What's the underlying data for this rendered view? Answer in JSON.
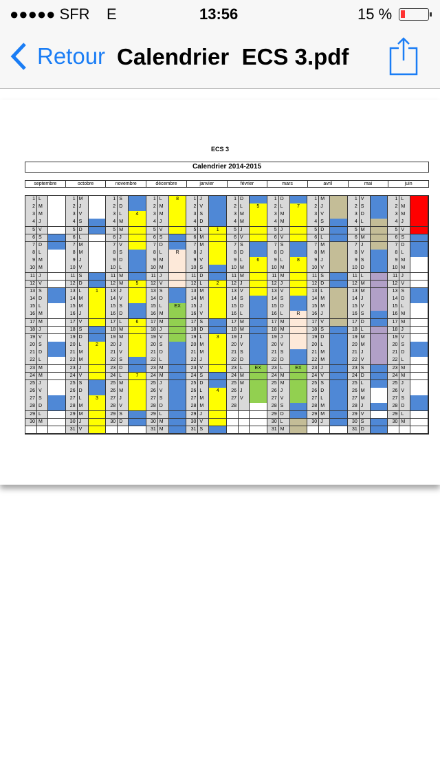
{
  "status_bar": {
    "carrier": "●●●●● SFR",
    "network": "E",
    "time": "13:56",
    "battery": "15 %",
    "battery_level": 0.15
  },
  "nav": {
    "back_label": "Retour",
    "title": "Calendrier  ECS 3.pdf",
    "accent": "#1a7df5"
  },
  "document": {
    "heading": "ECS 3",
    "calendar_title": "Calendrier 2014-2015",
    "colors": {
      "w": "#ffffff",
      "b": "#4f88d6",
      "y": "#ffff00",
      "p": "#fde9d9",
      "g": "#92d050",
      "t": "#c4bd97",
      "v": "#b1a0c7",
      "r": "#ff0000"
    },
    "months": [
      {
        "name": "septembre",
        "letters": "LMMJVSDLMMJVSDLMMJVSDLMMJVSDLM",
        "fills": "wwwwwbbwwwwwbbwwwwwbbwwwwwbbww",
        "labels": {}
      },
      {
        "name": "octobre",
        "letters": "MJVSDLMMJVSDLMMJVSDLMMJVSDLMMJV",
        "fills": "wwwbbwwwwwbbyyyyybbyyyyybbyyyyy",
        "labels": {
          "13": "1",
          "20": "2",
          "27": "3"
        }
      },
      {
        "name": "novembre",
        "letters": "SDLMMJVSDLMMJVSDLMMJVSDLMMJVSD",
        "fills": "bbyyyyybbbbyyybbyyyyybbyyyyybb",
        "labels": {
          "3": "4",
          "12": "5",
          "17": "6",
          "24": "7"
        }
      },
      {
        "name": "décembre",
        "letters": "LMMJVSDLMMJVSDLMMJVSDLMMJVSDLMM",
        "fills": "yyyyybbpppppbbgggggbbbbbbbbbbbb",
        "labels": {
          "1": "8",
          "8": "R",
          "15": "EX"
        }
      },
      {
        "name": "janvier",
        "letters": "JVSDLMMJVSDLMMJVSDLMMJVSDLMMJVS",
        "fills": "bbbbyyyyybbyyyyybbyyyyybbyyyyyb",
        "labels": {
          "5": "1",
          "12": "2",
          "19": "3",
          "26": "4"
        }
      },
      {
        "name": "février",
        "letters": "DLMMJVSDLMMJVSDLMMJVSDLMMJV ",
        "fills": "byyyyybbyyyyybbbbbbbbbgggggw",
        "labels": {
          "2": "5",
          "9": "6",
          "23": "EX"
        }
      },
      {
        "name": "mars",
        "letters": "DLMMJVSDLMMJVSDLMMJVSDLMMJVSDLM",
        "fills": "byyyyybbyyyyybbpppppbbgggggbbtt",
        "labels": {
          "2": "7",
          "9": "8",
          "16": "R",
          "23": "EX"
        }
      },
      {
        "name": "avril",
        "letters": "MJVSDLMMJVSDLMMJVSDLMMJVSDLMMJ",
        "fills": "tttbbbttttbbtttttbbbbbbbbbbbbb",
        "labels": {}
      },
      {
        "name": "mai",
        "letters": "VSDLMMJVSDLMMJVSDLMMJVSDLMMJVSD",
        "fills": "bbbttttbbbvvvvvbbvvvvvbbbwwbwbb",
        "labels": {}
      },
      {
        "name": "juin",
        "letters": "LMMJVSDLMMJVSDLMMJVSDLMMJVSDLM",
        "fills": "rrrrrbbbwwwwbbwwwwwbbwwwwwbbww",
        "labels": {}
      }
    ]
  }
}
